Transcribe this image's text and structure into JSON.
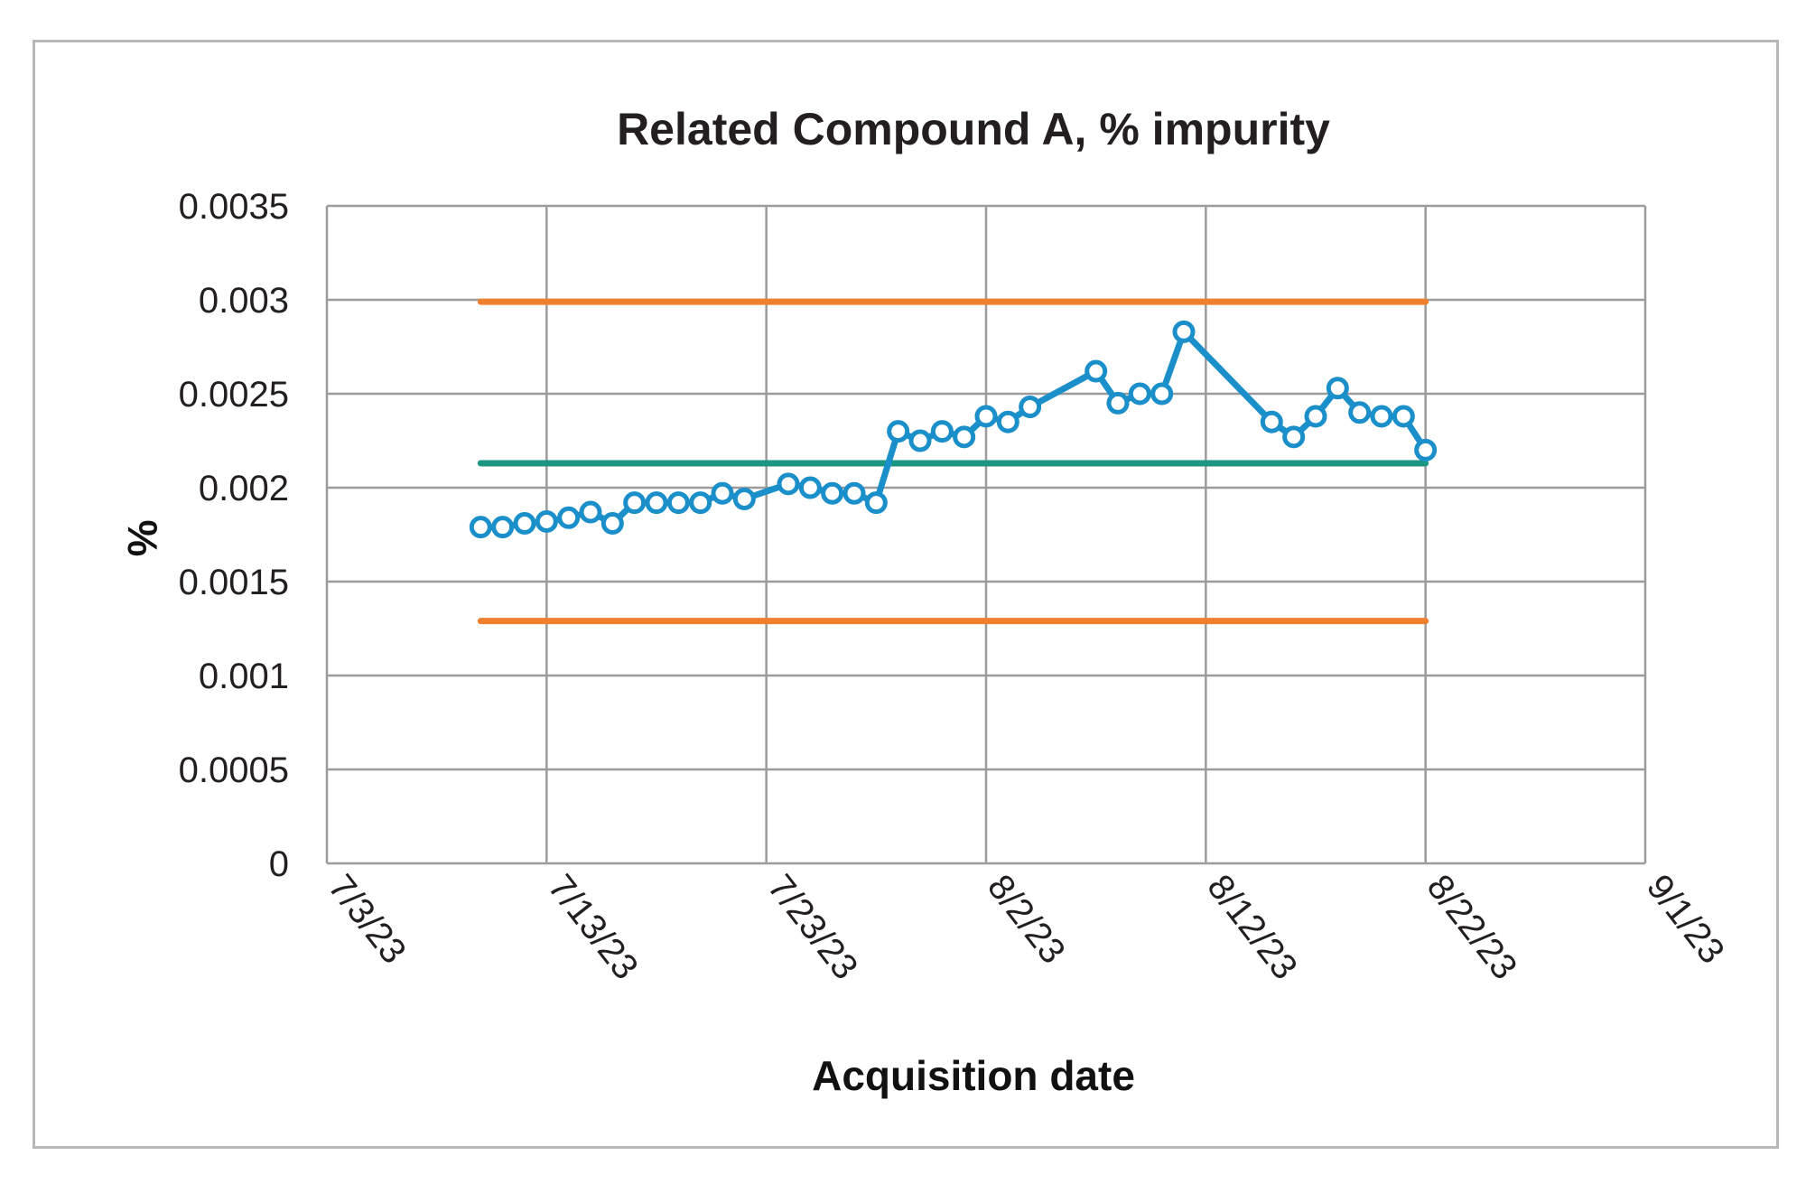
{
  "chart_data": {
    "type": "line",
    "title": "Related Compound A, % impurity",
    "xlabel": "Acquisition date",
    "ylabel": "%",
    "x_tick_labels": [
      "7/3/23",
      "7/13/23",
      "7/23/23",
      "8/2/23",
      "8/12/23",
      "8/22/23",
      "9/1/23"
    ],
    "y_tick_labels": [
      "0",
      "0.0005",
      "0.001",
      "0.0015",
      "0.002",
      "0.0025",
      "0.003",
      "0.0035"
    ],
    "xlim": [
      "2023-07-03",
      "2023-09-01"
    ],
    "ylim": [
      0,
      0.0035
    ],
    "grid": true,
    "legend": "none",
    "colors": {
      "series": "#1a8fc9",
      "mean_line": "#1a9682",
      "limit_lines": "#f07f2e",
      "grid": "#9b9b9b"
    },
    "series": [
      {
        "x": [
          "2023-07-10",
          "2023-07-11",
          "2023-07-12",
          "2023-07-13",
          "2023-07-14",
          "2023-07-15",
          "2023-07-16",
          "2023-07-17",
          "2023-07-18",
          "2023-07-19",
          "2023-07-20",
          "2023-07-21",
          "2023-07-22",
          "2023-07-24",
          "2023-07-25",
          "2023-07-26",
          "2023-07-27",
          "2023-07-28",
          "2023-07-29",
          "2023-07-30",
          "2023-07-31",
          "2023-08-01",
          "2023-08-02",
          "2023-08-03",
          "2023-08-04",
          "2023-08-07",
          "2023-08-08",
          "2023-08-09",
          "2023-08-10",
          "2023-08-11",
          "2023-08-15",
          "2023-08-16",
          "2023-08-17",
          "2023-08-18",
          "2023-08-19",
          "2023-08-20",
          "2023-08-21",
          "2023-08-22"
        ],
        "values": [
          0.00179,
          0.00179,
          0.00181,
          0.00182,
          0.00184,
          0.00187,
          0.00181,
          0.00192,
          0.00192,
          0.00192,
          0.00192,
          0.00197,
          0.00194,
          0.00202,
          0.002,
          0.00197,
          0.00197,
          0.00192,
          0.0023,
          0.00225,
          0.0023,
          0.00227,
          0.00238,
          0.00235,
          0.00243,
          0.00262,
          0.00245,
          0.0025,
          0.0025,
          0.00283,
          0.00235,
          0.00227,
          0.00238,
          0.00253,
          0.0024,
          0.00238,
          0.00238,
          0.0022
        ]
      }
    ],
    "reference_lines": [
      {
        "y": 0.00299,
        "from": "2023-07-10",
        "to": "2023-08-22",
        "color_key": "limit_lines"
      },
      {
        "y": 0.00213,
        "from": "2023-07-10",
        "to": "2023-08-22",
        "color_key": "mean_line"
      },
      {
        "y": 0.00129,
        "from": "2023-07-10",
        "to": "2023-08-22",
        "color_key": "limit_lines"
      }
    ]
  }
}
